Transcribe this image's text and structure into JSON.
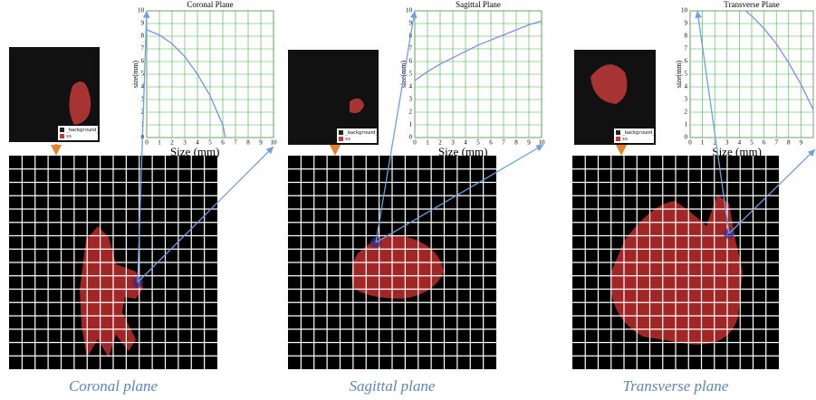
{
  "chart_data": [
    {
      "type": "line",
      "title": "Coronal Plane",
      "xlabel": "Size (mm)",
      "ylabel": "size(mm)",
      "x": [
        0,
        1,
        2,
        3,
        4,
        5,
        6,
        6.2
      ],
      "values": [
        8.5,
        8.1,
        7.4,
        6.4,
        5.0,
        3.3,
        1.0,
        0
      ],
      "color": "#7f8fe0",
      "xlim": [
        0,
        10
      ],
      "ylim": [
        0,
        10
      ],
      "xticks": [
        0,
        1,
        2,
        3,
        4,
        5,
        6,
        7,
        8,
        9,
        10
      ],
      "yticks": [
        0,
        1,
        2,
        3,
        4,
        5,
        6,
        7,
        8,
        9,
        10
      ],
      "grid": true,
      "inset_labels": [
        "_background_",
        "ss"
      ],
      "caption": "Coronal plane"
    },
    {
      "type": "line",
      "title": "Sagittal Plane",
      "xlabel": "Size (mm)",
      "ylabel": "size(mm)",
      "x": [
        0,
        1,
        2,
        3,
        4,
        5,
        6,
        7,
        8,
        9,
        10
      ],
      "values": [
        4.5,
        5.2,
        5.8,
        6.3,
        6.8,
        7.3,
        7.7,
        8.1,
        8.5,
        8.9,
        9.2
      ],
      "color": "#7f8fe0",
      "xlim": [
        0,
        10
      ],
      "ylim": [
        0,
        10
      ],
      "xticks": [
        0,
        1,
        2,
        3,
        4,
        5,
        6,
        7,
        8,
        9,
        10
      ],
      "yticks": [
        0,
        1,
        2,
        3,
        4,
        5,
        6,
        7,
        8,
        9,
        10
      ],
      "grid": true,
      "inset_labels": [
        "_background_",
        "ss"
      ],
      "caption": "Sagittal plane"
    },
    {
      "type": "line",
      "title": "Transverse Plane",
      "xlabel": "Size (mm)",
      "ylabel": "size(mm)",
      "x": [
        4.5,
        5,
        6,
        7,
        8,
        9,
        10
      ],
      "values": [
        10,
        9.6,
        8.6,
        7.4,
        5.9,
        4.2,
        2.2
      ],
      "color": "#7f8fe0",
      "xlim": [
        0,
        10
      ],
      "ylim": [
        0,
        10
      ],
      "xticks": [
        0,
        1,
        2,
        3,
        4,
        5,
        6,
        7,
        8,
        9
      ],
      "yticks": [
        0,
        1,
        2,
        3,
        4,
        5,
        6,
        7,
        8,
        9,
        10
      ],
      "grid": true,
      "inset_labels": [
        "_background_",
        "ss"
      ],
      "caption": "Transverse plane"
    }
  ]
}
